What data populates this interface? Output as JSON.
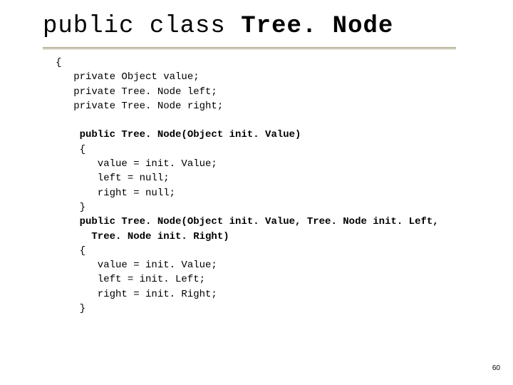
{
  "title": {
    "part1": "public class ",
    "part2": "Tree. Node"
  },
  "code": {
    "line0": "{",
    "line1": "   private Object value;",
    "line2": "   private Tree. Node left;",
    "line3": "   private Tree. Node right;",
    "line4": "",
    "line5": "    public Tree. Node(Object init. Value)",
    "line6": "    {",
    "line7": "       value = init. Value;",
    "line8": "       left = null;",
    "line9": "       right = null;",
    "line10": "    }",
    "line11": "    public Tree. Node(Object init. Value, Tree. Node init. Left,",
    "line12": "      Tree. Node init. Right)",
    "line13": "    {",
    "line14": "       value = init. Value;",
    "line15": "       left = init. Left;",
    "line16": "       right = init. Right;",
    "line17": "    }"
  },
  "pagenum": "60",
  "colors": {
    "background": "#ffffff",
    "text": "#000000",
    "rule": "#9c9576"
  },
  "fonts": {
    "title_fontsize": 34,
    "code_fontsize": 14,
    "pagenum_fontsize": 10
  }
}
